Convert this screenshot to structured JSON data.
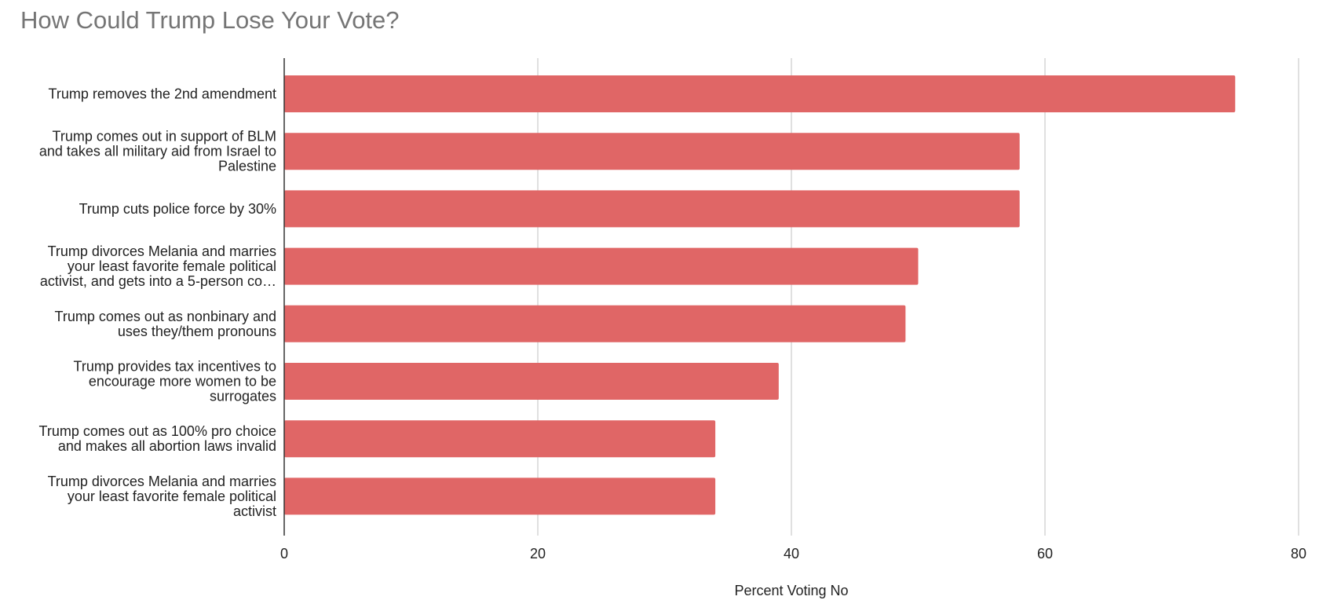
{
  "chart_data": {
    "type": "bar",
    "orientation": "horizontal",
    "title": "How Could Trump Lose Your Vote?",
    "xlabel": "Percent Voting No",
    "ylabel": "",
    "xlim": [
      0,
      80
    ],
    "x_ticks": [
      0,
      20,
      40,
      60,
      80
    ],
    "grid": true,
    "legend": "none",
    "bar_color": "#e06666",
    "categories": [
      [
        "Trump removes the 2nd amendment"
      ],
      [
        "Trump comes out in support of BLM",
        "and takes all military aid from Israel to",
        "Palestine"
      ],
      [
        "Trump cuts police force by 30%"
      ],
      [
        "Trump divorces Melania and marries",
        "your least favorite female political",
        "activist, and gets into a 5-person co…"
      ],
      [
        "Trump comes out as nonbinary and",
        "uses they/them pronouns"
      ],
      [
        "Trump provides tax incentives to",
        "encourage more women to be",
        "surrogates"
      ],
      [
        "Trump comes out as 100% pro choice",
        "and makes all abortion laws invalid"
      ],
      [
        "Trump divorces Melania and marries",
        "your least favorite female political",
        "activist"
      ]
    ],
    "values": [
      75,
      58,
      58,
      50,
      49,
      39,
      34,
      34
    ]
  }
}
